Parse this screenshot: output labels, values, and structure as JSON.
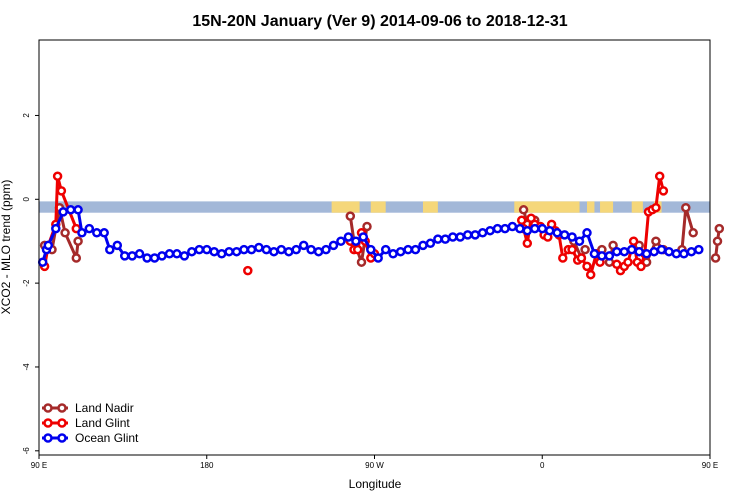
{
  "chart_data": {
    "type": "line",
    "title": "15N-20N January (Ver 9)   2014-09-06 to 2018-12-31",
    "xlabel": "Longitude",
    "ylabel": "XCO2 - MLO trend (ppm)",
    "xlim": [
      90,
      450
    ],
    "ylim": [
      -6.1,
      3.8
    ],
    "x_ticks": [
      {
        "value": 90,
        "label": "90 E"
      },
      {
        "value": 180,
        "label": "180"
      },
      {
        "value": 270,
        "label": "90 W"
      },
      {
        "value": 360,
        "label": "0"
      },
      {
        "value": 450,
        "label": "90 E"
      },
      {
        "value": 540,
        "label": "180"
      }
    ],
    "y_ticks": [
      {
        "value": 2,
        "label": "2"
      },
      {
        "value": 0,
        "label": "0"
      },
      {
        "value": -2,
        "label": "-2"
      },
      {
        "value": -4,
        "label": "-4"
      },
      {
        "value": -6,
        "label": "-6"
      }
    ],
    "grid": false,
    "legend_position": "bottom-left",
    "land_band": {
      "y_top": -0.05,
      "y_bottom": -0.32,
      "ocean_color": "#a3b8d8",
      "land_color": "#f5d77a"
    },
    "series": [
      {
        "name": "Land Nadir",
        "color": "#a52a2a",
        "segments": [
          [
            [
              93,
              -1.1
            ],
            [
              97,
              -1.2
            ],
            [
              101,
              -0.2
            ],
            [
              104,
              -0.8
            ],
            [
              110,
              -1.4
            ],
            [
              111,
              -1.0
            ]
          ],
          [
            [
              257,
              -0.4
            ],
            [
              259,
              -1.0
            ],
            [
              263,
              -1.5
            ],
            [
              266,
              -0.65
            ]
          ],
          [
            [
              350,
              -0.25
            ],
            [
              352,
              -0.6
            ],
            [
              356,
              -0.5
            ]
          ],
          [
            [
              377,
              -1.0
            ],
            [
              381,
              -1.4
            ],
            [
              383,
              -1.2
            ]
          ],
          [
            [
              392,
              -1.2
            ],
            [
              396,
              -1.5
            ],
            [
              398,
              -1.1
            ]
          ],
          [
            [
              412,
              -1.1
            ],
            [
              416,
              -1.5
            ],
            [
              421,
              -1.0
            ],
            [
              425,
              -1.2
            ]
          ],
          [
            [
              435,
              -1.2
            ],
            [
              437,
              -0.2
            ],
            [
              441,
              -0.8
            ]
          ],
          [
            [
              453,
              -1.4
            ],
            [
              454,
              -1.0
            ],
            [
              455,
              -0.7
            ]
          ]
        ]
      },
      {
        "name": "Land Glint",
        "color": "#ee0000",
        "segments": [
          [
            [
              93,
              -1.6
            ],
            [
              95,
              -1.1
            ],
            [
              99,
              -0.6
            ],
            [
              100,
              0.55
            ],
            [
              102,
              0.2
            ],
            [
              110,
              -0.7
            ]
          ],
          [
            [
              202,
              -1.7
            ]
          ],
          [
            [
              257,
              -1.0
            ],
            [
              259,
              -1.2
            ],
            [
              261,
              -1.2
            ],
            [
              263,
              -0.8
            ],
            [
              265,
              -1.0
            ],
            [
              268,
              -1.4
            ]
          ],
          [
            [
              270,
              -1.3
            ]
          ],
          [
            [
              349,
              -0.5
            ],
            [
              350,
              -0.7
            ],
            [
              352,
              -1.05
            ],
            [
              354,
              -0.45
            ],
            [
              356,
              -0.6
            ],
            [
              359,
              -0.65
            ],
            [
              361,
              -0.85
            ],
            [
              363,
              -0.9
            ],
            [
              365,
              -0.6
            ],
            [
              367,
              -0.75
            ],
            [
              369,
              -0.85
            ],
            [
              371,
              -1.4
            ],
            [
              374,
              -1.2
            ],
            [
              376,
              -1.2
            ],
            [
              379,
              -1.45
            ],
            [
              381,
              -1.4
            ],
            [
              384,
              -1.6
            ],
            [
              386,
              -1.8
            ],
            [
              389,
              -1.3
            ],
            [
              391,
              -1.5
            ]
          ],
          [
            [
              400,
              -1.55
            ],
            [
              402,
              -1.7
            ],
            [
              404,
              -1.6
            ],
            [
              406,
              -1.5
            ],
            [
              409,
              -1.0
            ],
            [
              411,
              -1.5
            ],
            [
              413,
              -1.6
            ],
            [
              415,
              -1.3
            ],
            [
              417,
              -0.3
            ],
            [
              419,
              -0.25
            ],
            [
              421,
              -0.2
            ],
            [
              423,
              0.55
            ],
            [
              425,
              0.2
            ]
          ]
        ]
      },
      {
        "name": "Ocean Glint",
        "color": "#0000ee",
        "segments": [
          [
            [
              92,
              -1.5
            ],
            [
              94,
              -1.2
            ],
            [
              95,
              -1.1
            ],
            [
              99,
              -0.7
            ],
            [
              103,
              -0.3
            ],
            [
              107,
              -0.25
            ],
            [
              111,
              -0.25
            ],
            [
              113,
              -0.8
            ],
            [
              117,
              -0.7
            ],
            [
              121,
              -0.8
            ],
            [
              125,
              -0.8
            ],
            [
              128,
              -1.2
            ],
            [
              132,
              -1.1
            ],
            [
              136,
              -1.35
            ],
            [
              140,
              -1.35
            ],
            [
              144,
              -1.3
            ],
            [
              148,
              -1.4
            ],
            [
              152,
              -1.4
            ],
            [
              156,
              -1.35
            ],
            [
              160,
              -1.3
            ],
            [
              164,
              -1.3
            ],
            [
              168,
              -1.35
            ],
            [
              172,
              -1.25
            ],
            [
              176,
              -1.2
            ],
            [
              180,
              -1.2
            ],
            [
              184,
              -1.25
            ],
            [
              188,
              -1.3
            ],
            [
              192,
              -1.25
            ],
            [
              196,
              -1.25
            ],
            [
              200,
              -1.2
            ],
            [
              204,
              -1.2
            ],
            [
              208,
              -1.15
            ],
            [
              212,
              -1.2
            ],
            [
              216,
              -1.25
            ],
            [
              220,
              -1.2
            ],
            [
              224,
              -1.25
            ],
            [
              228,
              -1.2
            ],
            [
              232,
              -1.1
            ],
            [
              236,
              -1.2
            ],
            [
              240,
              -1.25
            ],
            [
              244,
              -1.2
            ],
            [
              248,
              -1.1
            ],
            [
              252,
              -1.0
            ],
            [
              256,
              -0.9
            ],
            [
              260,
              -1.0
            ],
            [
              264,
              -0.9
            ],
            [
              268,
              -1.2
            ],
            [
              272,
              -1.4
            ],
            [
              276,
              -1.2
            ],
            [
              280,
              -1.3
            ],
            [
              284,
              -1.25
            ],
            [
              288,
              -1.2
            ],
            [
              292,
              -1.2
            ],
            [
              296,
              -1.1
            ],
            [
              300,
              -1.05
            ],
            [
              304,
              -0.95
            ],
            [
              308,
              -0.95
            ],
            [
              312,
              -0.9
            ],
            [
              316,
              -0.9
            ],
            [
              320,
              -0.85
            ],
            [
              324,
              -0.85
            ],
            [
              328,
              -0.8
            ],
            [
              332,
              -0.75
            ],
            [
              336,
              -0.7
            ],
            [
              340,
              -0.7
            ],
            [
              344,
              -0.65
            ],
            [
              348,
              -0.7
            ],
            [
              352,
              -0.75
            ],
            [
              356,
              -0.7
            ],
            [
              360,
              -0.7
            ],
            [
              364,
              -0.75
            ],
            [
              368,
              -0.8
            ],
            [
              372,
              -0.85
            ],
            [
              376,
              -0.9
            ],
            [
              380,
              -1.0
            ],
            [
              384,
              -0.8
            ],
            [
              388,
              -1.3
            ],
            [
              392,
              -1.35
            ],
            [
              396,
              -1.35
            ],
            [
              400,
              -1.25
            ],
            [
              404,
              -1.25
            ],
            [
              408,
              -1.2
            ],
            [
              412,
              -1.25
            ],
            [
              416,
              -1.3
            ],
            [
              420,
              -1.25
            ],
            [
              424,
              -1.2
            ],
            [
              428,
              -1.25
            ],
            [
              432,
              -1.3
            ],
            [
              436,
              -1.3
            ],
            [
              440,
              -1.25
            ],
            [
              444,
              -1.2
            ]
          ]
        ]
      }
    ]
  }
}
